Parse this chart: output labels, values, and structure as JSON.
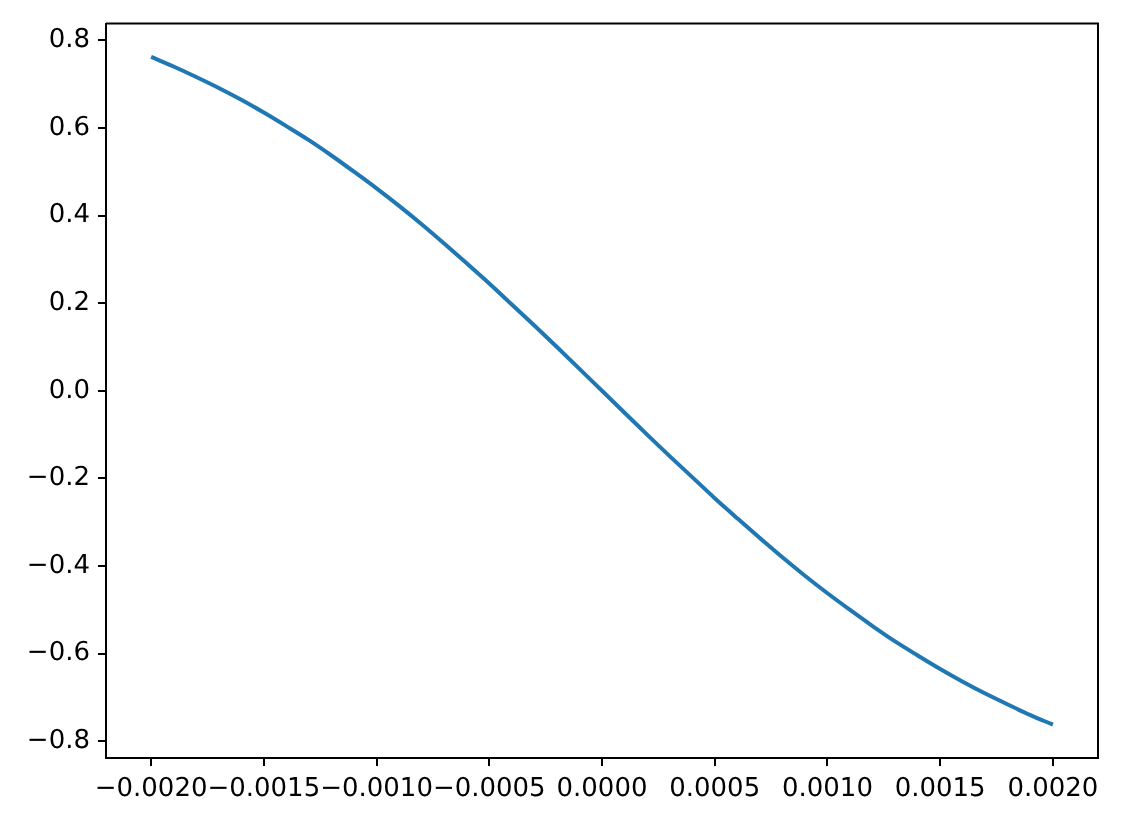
{
  "chart_data": {
    "type": "line",
    "x": [
      -0.002,
      -0.0019,
      -0.0018,
      -0.0017,
      -0.0016,
      -0.0015,
      -0.0014,
      -0.0013,
      -0.0012,
      -0.0011,
      -0.001,
      -0.0009,
      -0.0008,
      -0.0007,
      -0.0006,
      -0.0005,
      -0.0004,
      -0.0003,
      -0.0002,
      -0.0001,
      0,
      0.0001,
      0.0002,
      0.0003,
      0.0004,
      0.0005,
      0.0006,
      0.0007,
      0.0008,
      0.0009,
      0.001,
      0.0011,
      0.0012,
      0.0013,
      0.0014,
      0.0015,
      0.0016,
      0.0017,
      0.0018,
      0.0019,
      0.002
    ],
    "series": [
      {
        "color": "#1f77b4",
        "values": [
          0.762,
          0.74,
          0.716,
          0.691,
          0.664,
          0.635,
          0.604,
          0.572,
          0.537,
          0.5,
          0.462,
          0.422,
          0.38,
          0.336,
          0.291,
          0.245,
          0.197,
          0.149,
          0.1,
          0.05,
          0,
          -0.05,
          -0.1,
          -0.149,
          -0.197,
          -0.245,
          -0.291,
          -0.336,
          -0.38,
          -0.422,
          -0.462,
          -0.5,
          -0.537,
          -0.572,
          -0.604,
          -0.635,
          -0.664,
          -0.691,
          -0.716,
          -0.74,
          -0.762
        ]
      }
    ],
    "xlim": [
      -0.0022,
      0.0022
    ],
    "xticks": [
      {
        "value": -0.002,
        "label": "−0.0020"
      },
      {
        "value": -0.0015,
        "label": "−0.0015"
      },
      {
        "value": -0.001,
        "label": "−0.0010"
      },
      {
        "value": -0.0005,
        "label": "−0.0005"
      },
      {
        "value": 0,
        "label": "0.0000"
      },
      {
        "value": 0.0005,
        "label": "0.0005"
      },
      {
        "value": 0.001,
        "label": "0.0010"
      },
      {
        "value": 0.0015,
        "label": "0.0015"
      },
      {
        "value": 0.002,
        "label": "0.0020"
      }
    ],
    "ylim": [
      -0.838,
      0.838
    ],
    "yticks": [
      {
        "value": -0.8,
        "label": "−0.8"
      },
      {
        "value": -0.6,
        "label": "−0.6"
      },
      {
        "value": -0.4,
        "label": "−0.4"
      },
      {
        "value": -0.2,
        "label": "−0.2"
      },
      {
        "value": 0,
        "label": "0.0"
      },
      {
        "value": 0.2,
        "label": "0.2"
      },
      {
        "value": 0.4,
        "label": "0.4"
      },
      {
        "value": 0.6,
        "label": "0.6"
      },
      {
        "value": 0.8,
        "label": "0.8"
      }
    ],
    "grid": false
  }
}
